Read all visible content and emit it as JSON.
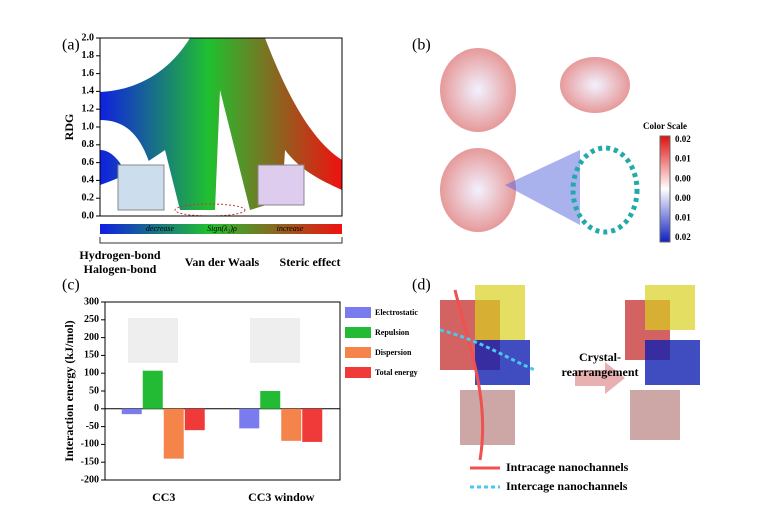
{
  "chart_data": [
    {
      "type": "scatter",
      "ylabel": "RDG",
      "ylim": [
        0,
        2
      ],
      "yticks": [
        {
          "value": 0,
          "label": "0.0"
        },
        {
          "value": 0.2,
          "label": "0.2"
        },
        {
          "value": 0.4,
          "label": "0.4"
        },
        {
          "value": 0.6,
          "label": "0.6"
        },
        {
          "value": 0.8,
          "label": "0.8"
        },
        {
          "value": 1,
          "label": "1.0"
        },
        {
          "value": 1.2,
          "label": "1.2"
        },
        {
          "value": 1.4,
          "label": "1.4"
        },
        {
          "value": 1.6,
          "label": "1.6"
        },
        {
          "value": 1.8,
          "label": "1.8"
        },
        {
          "value": 2,
          "label": "2.0"
        }
      ],
      "axis_texts": [
        "decrease",
        "Sign(λ₂)ρ",
        "increase"
      ],
      "annotations": [
        "Hydrogen-bond",
        "Halogen-bond",
        "Van der Waals",
        "Steric effect"
      ]
    },
    {
      "type": "bar",
      "ylabel": "Interaction energy (kJ/mol)",
      "categories": [
        "CC3",
        "CC3 window"
      ],
      "series": [
        {
          "name": "Electrostatic",
          "color": "#7b7bf0",
          "values": [
            -15,
            -55
          ]
        },
        {
          "name": "Repulsion",
          "color": "#22bb33",
          "values": [
            107,
            50
          ]
        },
        {
          "name": "Dispersion",
          "color": "#f5844a",
          "values": [
            -140,
            -90
          ]
        },
        {
          "name": "Total energy",
          "color": "#f03a3a",
          "values": [
            -60,
            -93
          ]
        }
      ],
      "ylim": [
        -200,
        300
      ],
      "yticks": [
        -200,
        -150,
        -100,
        -50,
        0,
        50,
        100,
        150,
        200,
        250,
        300
      ]
    }
  ],
  "figure": {
    "panel_labels": [
      "(a)",
      "(b)",
      "(c)",
      "(d)"
    ],
    "color_scale": {
      "title": "Color Scale",
      "labels": [
        "0.02",
        "0.01",
        "0.00",
        "0.00",
        "0.01",
        "0.02"
      ]
    },
    "panel_d": {
      "arrow_text": [
        "Crystal-",
        "rearrangement"
      ],
      "legend": [
        "Intracage nanochannels",
        "Intercage nanochannels"
      ]
    }
  }
}
